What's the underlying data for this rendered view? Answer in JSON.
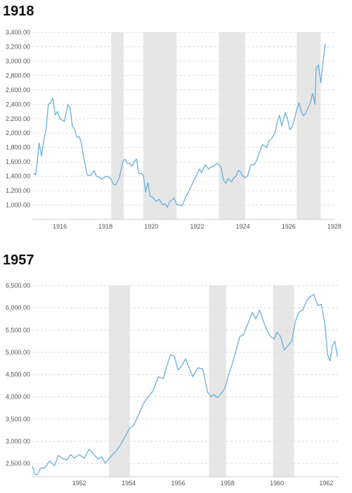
{
  "chart_data": [
    {
      "type": "line",
      "title": "1918",
      "x_unit": "year",
      "xlim": [
        1914.8,
        1928.0
      ],
      "ylim": [
        800,
        3400
      ],
      "grid": true,
      "line_color": "#6aaede",
      "recession_color": "#e6e6e6",
      "y_ticks": [
        1000,
        1200,
        1400,
        1600,
        1800,
        2000,
        2200,
        2400,
        2600,
        2800,
        3000,
        3200,
        3400
      ],
      "y_tick_labels": [
        "1,000.00",
        "1,200.00",
        "1,400.00",
        "1,600.00",
        "1,800.00",
        "2,000.00",
        "2,200.00",
        "2,400.00",
        "2,600.00",
        "2,800.00",
        "3,000.00",
        "3,200.00",
        "3,400.00"
      ],
      "x_ticks": [
        1916,
        1918,
        1920,
        1922,
        1924,
        1926,
        1928
      ],
      "x_tick_labels": [
        "1916",
        "1918",
        "1920",
        "1922",
        "1924",
        "1926",
        "1928"
      ],
      "recessions": [
        [
          1918.25,
          1918.8
        ],
        [
          1919.65,
          1921.1
        ],
        [
          1922.95,
          1924.1
        ],
        [
          1926.35,
          1927.4
        ]
      ],
      "series": [
        {
          "x": [
            1914.85,
            1914.95,
            1915.1,
            1915.2,
            1915.3,
            1915.4,
            1915.5,
            1915.6,
            1915.7,
            1915.8,
            1915.9,
            1916.0,
            1916.1,
            1916.2,
            1916.35,
            1916.45,
            1916.55,
            1916.65,
            1916.75,
            1916.85,
            1916.95,
            1917.05,
            1917.2,
            1917.35,
            1917.5,
            1917.6,
            1917.7,
            1917.85,
            1918.0,
            1918.2,
            1918.35,
            1918.45,
            1918.6,
            1918.75,
            1918.85,
            1918.95,
            1919.05,
            1919.15,
            1919.25,
            1919.35,
            1919.45,
            1919.55,
            1919.65,
            1919.75,
            1919.85,
            1919.95,
            1920.05,
            1920.2,
            1920.35,
            1920.5,
            1920.6,
            1920.7,
            1920.8,
            1920.9,
            1921.0,
            1921.1,
            1921.2,
            1921.35,
            1921.5,
            1921.65,
            1921.8,
            1921.95,
            1922.1,
            1922.2,
            1922.35,
            1922.5,
            1922.6,
            1922.7,
            1922.85,
            1922.95,
            1923.05,
            1923.15,
            1923.25,
            1923.35,
            1923.5,
            1923.6,
            1923.7,
            1923.8,
            1923.9,
            1924.0,
            1924.1,
            1924.2,
            1924.35,
            1924.5,
            1924.6,
            1924.75,
            1924.85,
            1924.95,
            1925.05,
            1925.15,
            1925.25,
            1925.4,
            1925.5,
            1925.6,
            1925.7,
            1925.85,
            1925.95,
            1926.05,
            1926.15,
            1926.3,
            1926.35,
            1926.45,
            1926.55,
            1926.65,
            1926.75,
            1926.85,
            1926.95,
            1927.0,
            1927.05,
            1927.15,
            1927.2,
            1927.3,
            1927.4,
            1927.5,
            1927.6
          ],
          "values": [
            1440,
            1420,
            1860,
            1680,
            1900,
            2050,
            2400,
            2420,
            2480,
            2250,
            2300,
            2200,
            2180,
            2160,
            2400,
            2350,
            2100,
            2050,
            1940,
            1950,
            1850,
            1650,
            1420,
            1410,
            1480,
            1400,
            1390,
            1360,
            1400,
            1380,
            1290,
            1280,
            1380,
            1600,
            1640,
            1580,
            1580,
            1540,
            1600,
            1640,
            1440,
            1440,
            1420,
            1180,
            1310,
            1120,
            1110,
            1050,
            1080,
            1000,
            1020,
            970,
            1050,
            1070,
            1100,
            1010,
            1000,
            990,
            1110,
            1200,
            1300,
            1400,
            1500,
            1450,
            1560,
            1500,
            1530,
            1530,
            1580,
            1560,
            1520,
            1350,
            1300,
            1370,
            1320,
            1380,
            1400,
            1480,
            1460,
            1400,
            1380,
            1400,
            1560,
            1560,
            1620,
            1750,
            1840,
            1820,
            1800,
            1900,
            1920,
            2000,
            2150,
            2250,
            2100,
            2280,
            2200,
            2050,
            2080,
            2250,
            2320,
            2420,
            2300,
            2240,
            2280,
            2350,
            2420,
            2500,
            2550,
            2400,
            2900,
            2950,
            2700,
            2980,
            3240
          ]
        }
      ]
    },
    {
      "type": "line",
      "title": "1957",
      "x_unit": "year",
      "xlim": [
        1950.1,
        1962.5
      ],
      "ylim": [
        2200,
        6500
      ],
      "grid": true,
      "line_color": "#6aaede",
      "recession_color": "#e6e6e6",
      "y_ticks": [
        2500,
        3000,
        3500,
        4000,
        4500,
        5000,
        5500,
        6000,
        6500
      ],
      "y_tick_labels": [
        "2,500.00",
        "3,000.00",
        "3,500.00",
        "4,000.00",
        "4,500.00",
        "5,000.00",
        "5,500.00",
        "6,000.00",
        "6,500.00"
      ],
      "x_ticks": [
        1952,
        1954,
        1956,
        1958,
        1960,
        1962
      ],
      "x_tick_labels": [
        "1952",
        "1954",
        "1956",
        "1958",
        "1960",
        "1962"
      ],
      "recessions": [
        [
          1953.2,
          1954.05
        ],
        [
          1957.25,
          1957.95
        ],
        [
          1959.85,
          1960.7
        ]
      ],
      "series": [
        {
          "x": [
            1950.1,
            1950.2,
            1950.3,
            1950.45,
            1950.6,
            1950.8,
            1951.0,
            1951.15,
            1951.3,
            1951.5,
            1951.65,
            1951.8,
            1952.0,
            1952.2,
            1952.4,
            1952.6,
            1952.75,
            1952.9,
            1953.05,
            1953.2,
            1953.35,
            1953.5,
            1953.7,
            1953.9,
            1954.05,
            1954.2,
            1954.4,
            1954.6,
            1954.8,
            1955.0,
            1955.2,
            1955.4,
            1955.55,
            1955.7,
            1955.85,
            1956.0,
            1956.15,
            1956.3,
            1956.45,
            1956.6,
            1956.8,
            1957.0,
            1957.2,
            1957.35,
            1957.45,
            1957.6,
            1957.75,
            1957.9,
            1958.05,
            1958.2,
            1958.35,
            1958.5,
            1958.65,
            1958.8,
            1959.0,
            1959.15,
            1959.3,
            1959.45,
            1959.6,
            1959.75,
            1959.9,
            1960.0,
            1960.15,
            1960.3,
            1960.45,
            1960.6,
            1960.75,
            1960.9,
            1961.05,
            1961.2,
            1961.35,
            1961.5,
            1961.65,
            1961.8,
            1961.95,
            1962.05,
            1962.15,
            1962.25,
            1962.35,
            1962.45
          ],
          "values": [
            2440,
            2260,
            2250,
            2400,
            2400,
            2560,
            2450,
            2680,
            2620,
            2580,
            2700,
            2620,
            2700,
            2620,
            2820,
            2700,
            2600,
            2650,
            2510,
            2600,
            2700,
            2780,
            2950,
            3150,
            3300,
            3350,
            3600,
            3850,
            4000,
            4150,
            4450,
            4400,
            4700,
            4950,
            4900,
            4600,
            4700,
            4850,
            4650,
            4450,
            4650,
            4620,
            4100,
            4000,
            4050,
            3980,
            4080,
            4200,
            4500,
            4750,
            5050,
            5350,
            5400,
            5600,
            5900,
            5750,
            5950,
            5700,
            5500,
            5350,
            5300,
            5450,
            5350,
            5050,
            5150,
            5250,
            5700,
            5900,
            5950,
            6150,
            6250,
            6300,
            6050,
            6080,
            5600,
            4950,
            4800,
            5150,
            5250,
            4900
          ]
        }
      ]
    }
  ]
}
